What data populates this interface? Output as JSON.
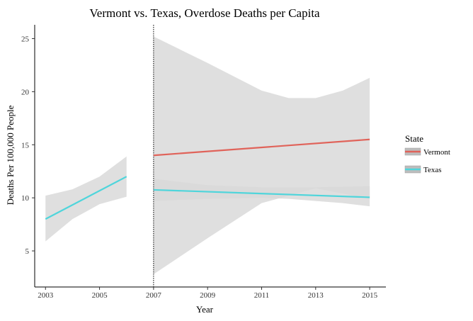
{
  "chart_data": {
    "type": "line",
    "title": "Vermont vs. Texas, Overdose Deaths per Capita",
    "xlabel": "Year",
    "ylabel": "Deaths Per 100,000 People",
    "xlim": [
      2002.6,
      2015.6
    ],
    "ylim": [
      1.6,
      26.3
    ],
    "xticks": [
      2003,
      2005,
      2007,
      2009,
      2011,
      2013,
      2015
    ],
    "yticks": [
      5,
      10,
      15,
      20,
      25
    ],
    "grid": false,
    "legend": {
      "title": "State",
      "position": "right"
    },
    "vline": {
      "x": 2007,
      "style": "dotted"
    },
    "colors": {
      "Vermont": "#e0635a",
      "Texas": "#4fd5db",
      "band": "#d9d9d9",
      "band_dark": "#bdbdbd"
    },
    "series": [
      {
        "name": "Vermont",
        "color": "#e0635a",
        "line": {
          "x": [
            2007,
            2015
          ],
          "y": [
            14.0,
            15.5
          ]
        },
        "band": {
          "x": [
            2007,
            2009,
            2011,
            2012,
            2013,
            2014,
            2015
          ],
          "lower": [
            9.7,
            9.9,
            10.0,
            9.9,
            9.7,
            9.5,
            9.2
          ],
          "upper": [
            25.2,
            22.7,
            20.1,
            19.4,
            19.4,
            20.1,
            21.3
          ]
        }
      },
      {
        "name": "Texas",
        "color": "#4fd5db",
        "line": {
          "x": [
            2003,
            2006,
            2007,
            2015
          ],
          "y": [
            8.0,
            12.0,
            10.75,
            10.05
          ],
          "segments": [
            [
              0,
              1
            ],
            [
              2,
              3
            ]
          ]
        },
        "band": {
          "segments": [
            {
              "x": [
                2003,
                2004,
                2005,
                2006
              ],
              "lower": [
                5.9,
                8.0,
                9.4,
                10.1
              ],
              "upper": [
                10.2,
                10.8,
                12.0,
                13.9
              ]
            },
            {
              "x": [
                2007,
                2009,
                2011,
                2013,
                2015
              ],
              "lower": [
                2.8,
                6.2,
                9.5,
                10.9,
                9.9
              ],
              "upper": [
                11.8,
                11.2,
                11.0,
                11.0,
                11.1
              ]
            }
          ]
        }
      }
    ]
  }
}
